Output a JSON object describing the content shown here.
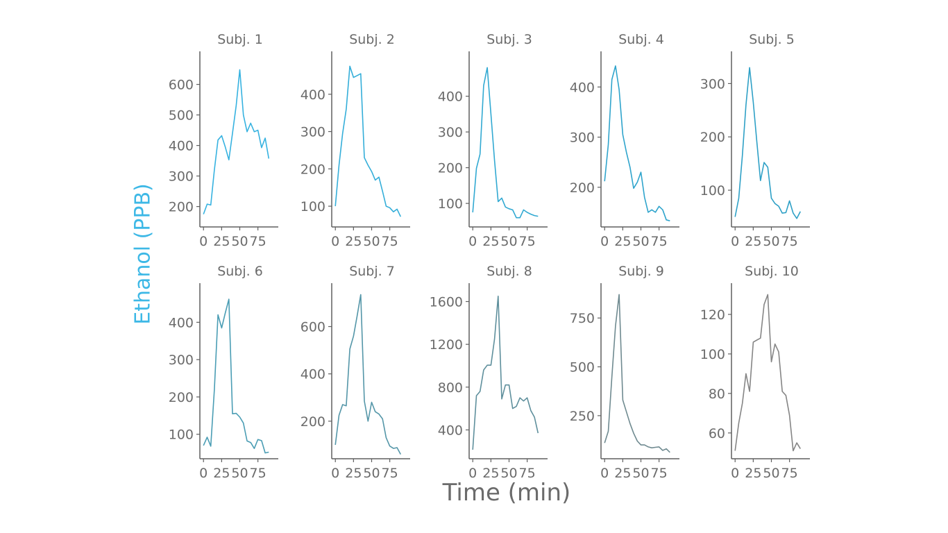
{
  "figure": {
    "xlabel": "Time (min)",
    "ylabel": "Ethanol (PPB)",
    "ylabel_color": "#3db8e6",
    "axis_text_color": "#6b6b6b"
  },
  "chart_data": [
    {
      "type": "line",
      "title": "Subj. 1",
      "color": "#36b2e0",
      "xlim": [
        -5,
        105
      ],
      "ylim": [
        140,
        690
      ],
      "yticks": [
        200,
        300,
        400,
        500,
        600
      ],
      "xticks": [
        0,
        25,
        50,
        75
      ],
      "xtick_labels": [
        "0",
        "25",
        "50",
        "75"
      ],
      "x": [
        0,
        5,
        10,
        15,
        20,
        25,
        30,
        35,
        40,
        45,
        50,
        55,
        60,
        65,
        70,
        75,
        80,
        85,
        90
      ],
      "y": [
        175,
        208,
        205,
        320,
        418,
        432,
        395,
        353,
        440,
        530,
        648,
        500,
        445,
        473,
        445,
        450,
        393,
        424,
        357
      ]
    },
    {
      "type": "line",
      "title": "Subj. 2",
      "color": "#34aed9",
      "xlim": [
        -5,
        105
      ],
      "ylim": [
        50,
        500
      ],
      "yticks": [
        100,
        200,
        300,
        400
      ],
      "xticks": [
        0,
        25,
        50,
        75
      ],
      "xtick_labels": [
        "0",
        "25",
        "50",
        "75"
      ],
      "x": [
        0,
        5,
        10,
        15,
        20,
        25,
        30,
        35,
        40,
        45,
        50,
        55,
        60,
        65,
        70,
        75,
        80,
        85,
        90
      ],
      "y": [
        100,
        210,
        295,
        360,
        475,
        445,
        450,
        455,
        230,
        210,
        193,
        170,
        178,
        140,
        100,
        96,
        85,
        92,
        72
      ]
    },
    {
      "type": "line",
      "title": "Subj. 3",
      "color": "#31a9d2",
      "xlim": [
        -5,
        105
      ],
      "ylim": [
        40,
        510
      ],
      "yticks": [
        100,
        200,
        300,
        400
      ],
      "xticks": [
        0,
        25,
        50,
        75
      ],
      "xtick_labels": [
        "0",
        "25",
        "50",
        "75"
      ],
      "x": [
        0,
        5,
        10,
        15,
        20,
        25,
        30,
        35,
        40,
        45,
        50,
        55,
        60,
        65,
        70,
        75,
        80,
        85,
        90
      ],
      "y": [
        75,
        198,
        238,
        430,
        480,
        350,
        220,
        105,
        115,
        90,
        85,
        82,
        60,
        60,
        82,
        75,
        70,
        66,
        64
      ]
    },
    {
      "type": "line",
      "title": "Subj. 4",
      "color": "#2fa4cc",
      "xlim": [
        -5,
        105
      ],
      "ylim": [
        125,
        460
      ],
      "yticks": [
        200,
        300,
        400
      ],
      "xticks": [
        0,
        25,
        50,
        75
      ],
      "xtick_labels": [
        "0",
        "25",
        "50",
        "75"
      ],
      "x": [
        0,
        5,
        10,
        15,
        20,
        25,
        30,
        35,
        40,
        45,
        50,
        55,
        60,
        65,
        70,
        75,
        80,
        85,
        90
      ],
      "y": [
        212,
        285,
        415,
        442,
        395,
        305,
        270,
        240,
        198,
        210,
        230,
        180,
        150,
        155,
        150,
        162,
        155,
        135,
        133
      ]
    },
    {
      "type": "line",
      "title": "Subj. 5",
      "color": "#2ea0c6",
      "xlim": [
        -5,
        105
      ],
      "ylim": [
        35,
        350
      ],
      "yticks": [
        100,
        200,
        300
      ],
      "xticks": [
        0,
        25,
        50,
        75
      ],
      "xtick_labels": [
        "0",
        "25",
        "50",
        "75"
      ],
      "x": [
        0,
        5,
        10,
        15,
        20,
        25,
        30,
        35,
        40,
        45,
        50,
        55,
        60,
        65,
        70,
        75,
        80,
        85,
        90
      ],
      "y": [
        50,
        85,
        165,
        260,
        330,
        265,
        190,
        118,
        152,
        143,
        85,
        75,
        70,
        57,
        58,
        80,
        57,
        47,
        60
      ]
    },
    {
      "type": "line",
      "title": "Subj. 6",
      "color": "#4a9db4",
      "xlim": [
        -5,
        105
      ],
      "ylim": [
        40,
        490
      ],
      "yticks": [
        100,
        200,
        300,
        400
      ],
      "xticks": [
        0,
        25,
        50,
        75
      ],
      "xtick_labels": [
        "0",
        "25",
        "50",
        "75"
      ],
      "x": [
        0,
        5,
        10,
        15,
        20,
        25,
        30,
        35,
        40,
        45,
        50,
        55,
        60,
        65,
        70,
        75,
        80,
        85,
        90
      ],
      "y": [
        70,
        92,
        68,
        220,
        420,
        385,
        425,
        462,
        155,
        156,
        146,
        130,
        82,
        78,
        62,
        86,
        83,
        50,
        52
      ]
    },
    {
      "type": "line",
      "title": "Subj. 7",
      "color": "#5496a8",
      "xlim": [
        -5,
        105
      ],
      "ylim": [
        50,
        760
      ],
      "yticks": [
        200,
        400,
        600
      ],
      "xticks": [
        0,
        25,
        50,
        75
      ],
      "xtick_labels": [
        "0",
        "25",
        "50",
        "75"
      ],
      "x": [
        0,
        5,
        10,
        15,
        20,
        25,
        30,
        35,
        40,
        45,
        50,
        55,
        60,
        65,
        70,
        75,
        80,
        85,
        90
      ],
      "y": [
        100,
        225,
        270,
        265,
        505,
        560,
        645,
        735,
        285,
        200,
        280,
        240,
        230,
        210,
        130,
        95,
        85,
        88,
        60
      ]
    },
    {
      "type": "line",
      "title": "Subj. 8",
      "color": "#5e8f9c",
      "xlim": [
        -5,
        105
      ],
      "ylim": [
        150,
        1720
      ],
      "yticks": [
        400,
        800,
        1200,
        1600
      ],
      "xticks": [
        0,
        25,
        50,
        75
      ],
      "xtick_labels": [
        "0",
        "25",
        "50",
        "75"
      ],
      "x": [
        0,
        5,
        10,
        15,
        20,
        25,
        30,
        35,
        40,
        45,
        50,
        55,
        60,
        65,
        70,
        75,
        80,
        85,
        90
      ],
      "y": [
        215,
        720,
        760,
        960,
        1005,
        1005,
        1250,
        1650,
        690,
        820,
        820,
        600,
        620,
        700,
        670,
        700,
        580,
        520,
        370
      ]
    },
    {
      "type": "line",
      "title": "Subj. 9",
      "color": "#6f8a90",
      "xlim": [
        -5,
        105
      ],
      "ylim": [
        40,
        900
      ],
      "yticks": [
        250,
        500,
        750
      ],
      "xticks": [
        0,
        25,
        50,
        75
      ],
      "xtick_labels": [
        "0",
        "25",
        "50",
        "75"
      ],
      "x": [
        0,
        5,
        10,
        15,
        20,
        25,
        30,
        35,
        40,
        45,
        50,
        55,
        60,
        65,
        70,
        75,
        80,
        85,
        90
      ],
      "y": [
        110,
        170,
        450,
        710,
        870,
        330,
        270,
        210,
        160,
        120,
        100,
        100,
        90,
        85,
        88,
        90,
        72,
        80,
        62
      ]
    },
    {
      "type": "line",
      "title": "Subj. 10",
      "color": "#858585",
      "xlim": [
        -5,
        105
      ],
      "ylim": [
        48,
        133
      ],
      "yticks": [
        60,
        80,
        100,
        120
      ],
      "xticks": [
        0,
        25,
        50,
        75
      ],
      "xtick_labels": [
        "0",
        "25",
        "50",
        "75"
      ],
      "x": [
        0,
        5,
        10,
        15,
        20,
        25,
        30,
        35,
        40,
        45,
        50,
        55,
        60,
        65,
        70,
        75,
        80,
        85,
        90
      ],
      "y": [
        51,
        65,
        75,
        90,
        81,
        106,
        107,
        108,
        125,
        130,
        96,
        105,
        101,
        81,
        79,
        69,
        51,
        55,
        52
      ]
    }
  ]
}
